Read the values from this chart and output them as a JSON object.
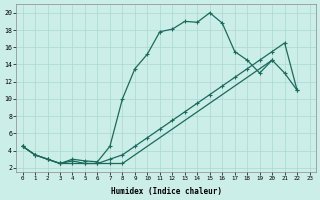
{
  "xlabel": "Humidex (Indice chaleur)",
  "bg_color": "#cceee8",
  "grid_color": "#aad8d0",
  "line_color": "#1a6b5a",
  "xlim": [
    -0.5,
    23.5
  ],
  "ylim": [
    1.5,
    21
  ],
  "xticks": [
    0,
    1,
    2,
    3,
    4,
    5,
    6,
    7,
    8,
    9,
    10,
    11,
    12,
    13,
    14,
    15,
    16,
    17,
    18,
    19,
    20,
    21,
    22,
    23
  ],
  "yticks": [
    2,
    4,
    6,
    8,
    10,
    12,
    14,
    16,
    18,
    20
  ],
  "line1_x": [
    0,
    1,
    2,
    3,
    4,
    5,
    6,
    7,
    8,
    9,
    10,
    11,
    12,
    13,
    14,
    15,
    16,
    17,
    18,
    19,
    20
  ],
  "line1_y": [
    4.5,
    3.5,
    3.0,
    2.5,
    3.0,
    2.8,
    2.7,
    4.5,
    10.0,
    13.5,
    15.2,
    17.8,
    18.1,
    19.0,
    18.9,
    20.0,
    18.8,
    15.5,
    14.5,
    13.0,
    14.5
  ],
  "line2_x": [
    0,
    1,
    2,
    3,
    4,
    5,
    6,
    7,
    8,
    20,
    21,
    22
  ],
  "line2_y": [
    4.5,
    3.5,
    3.0,
    2.5,
    2.5,
    2.5,
    2.5,
    2.5,
    2.5,
    14.5,
    13.0,
    11.0
  ],
  "line3_x": [
    0,
    1,
    2,
    3,
    4,
    5,
    6,
    7,
    8,
    9,
    10,
    11,
    12,
    13,
    14,
    15,
    16,
    17,
    18,
    19,
    20,
    21,
    22
  ],
  "line3_y": [
    4.5,
    3.5,
    3.0,
    2.5,
    2.8,
    2.5,
    2.5,
    3.0,
    3.5,
    4.5,
    5.5,
    6.5,
    7.5,
    8.5,
    9.5,
    10.5,
    11.5,
    12.5,
    13.5,
    14.5,
    15.5,
    16.5,
    11.0
  ]
}
